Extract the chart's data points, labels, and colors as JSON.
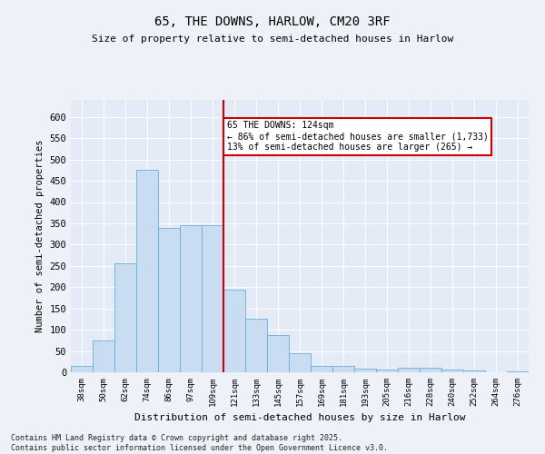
{
  "title": "65, THE DOWNS, HARLOW, CM20 3RF",
  "subtitle": "Size of property relative to semi-detached houses in Harlow",
  "xlabel": "Distribution of semi-detached houses by size in Harlow",
  "ylabel": "Number of semi-detached properties",
  "categories": [
    "38sqm",
    "50sqm",
    "62sqm",
    "74sqm",
    "86sqm",
    "97sqm",
    "109sqm",
    "121sqm",
    "133sqm",
    "145sqm",
    "157sqm",
    "169sqm",
    "181sqm",
    "193sqm",
    "205sqm",
    "216sqm",
    "228sqm",
    "240sqm",
    "252sqm",
    "264sqm",
    "276sqm"
  ],
  "values": [
    15,
    75,
    255,
    475,
    340,
    345,
    345,
    195,
    125,
    87,
    45,
    15,
    15,
    9,
    6,
    10,
    10,
    6,
    5,
    0,
    3
  ],
  "bar_color": "#c9ddf2",
  "bar_edge_color": "#6baed6",
  "vline_color": "#cc0000",
  "vline_index": 7,
  "annotation_text": "65 THE DOWNS: 124sqm\n← 86% of semi-detached houses are smaller (1,733)\n13% of semi-detached houses are larger (265) →",
  "annotation_box_facecolor": "#ffffff",
  "annotation_box_edgecolor": "#cc0000",
  "ylim": [
    0,
    640
  ],
  "yticks": [
    0,
    50,
    100,
    150,
    200,
    250,
    300,
    350,
    400,
    450,
    500,
    550,
    600
  ],
  "footer": "Contains HM Land Registry data © Crown copyright and database right 2025.\nContains public sector information licensed under the Open Government Licence v3.0.",
  "background_color": "#eef2f8",
  "plot_background_color": "#e4eaf6"
}
